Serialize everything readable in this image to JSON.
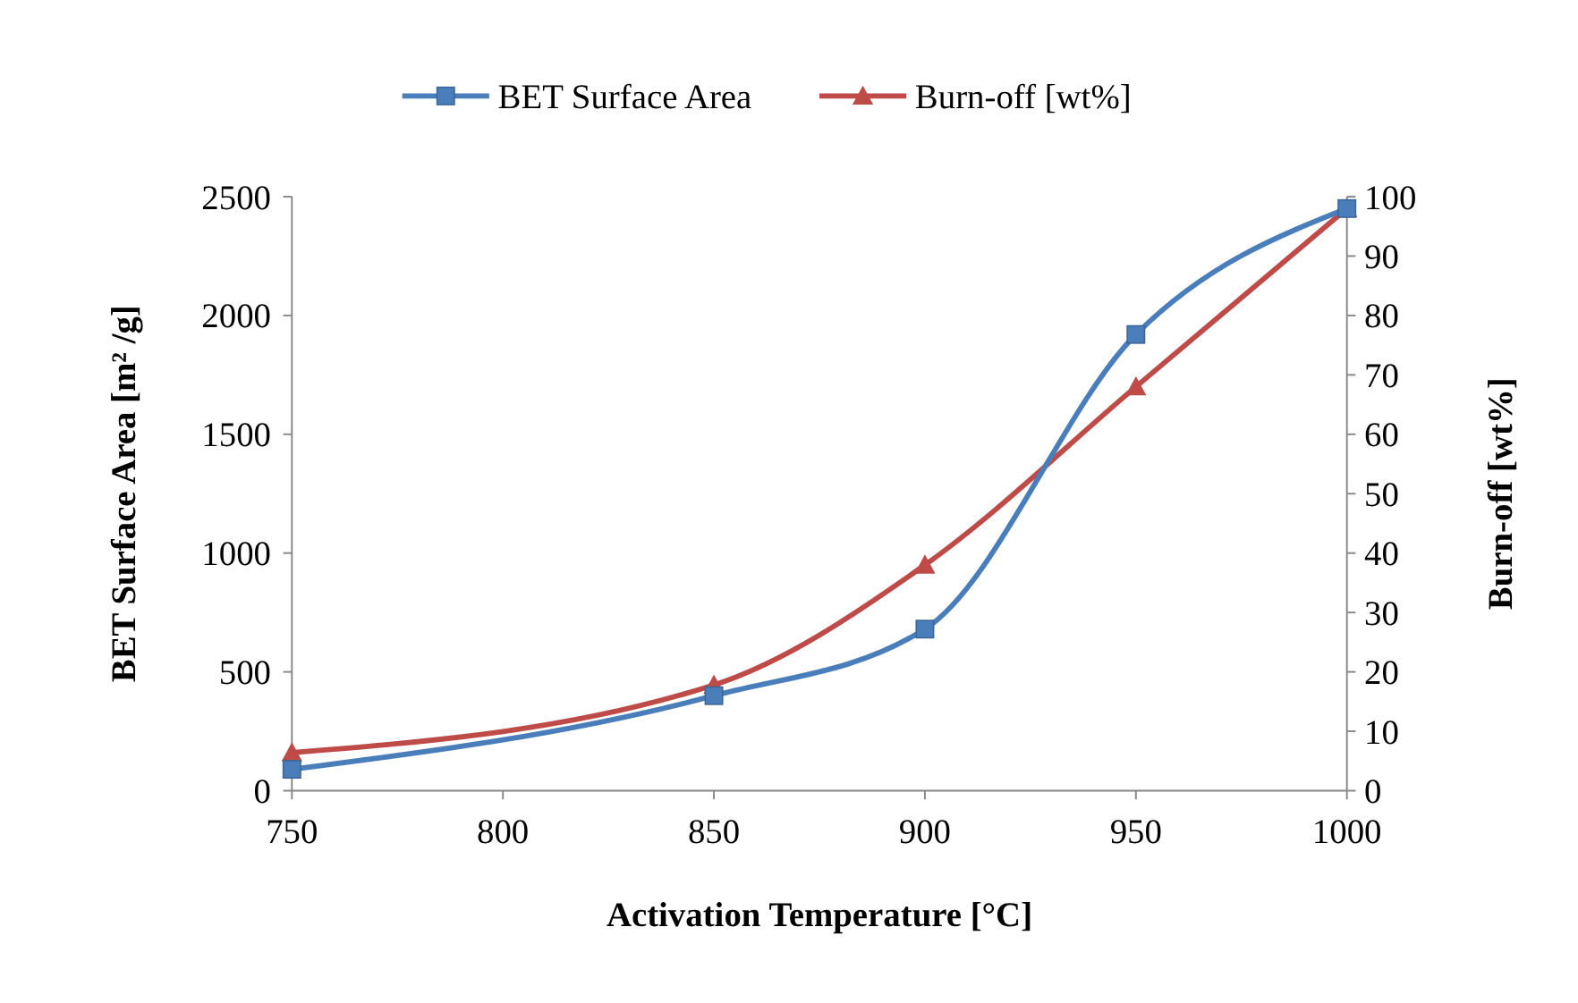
{
  "chart_data": {
    "type": "line",
    "xlabel": "Activation Temperature [°C]",
    "ylabel": "BET Surface Area [m² /g]",
    "y2label": "Burn-off [wt%]",
    "x": [
      750,
      850,
      900,
      950,
      1000
    ],
    "series": [
      {
        "name": "BET Surface Area",
        "color": "#4a7ebb",
        "marker": "square",
        "values": [
          90,
          400,
          680,
          1920,
          2450
        ]
      },
      {
        "name": "Burn-off [wt%]",
        "color": "#be4b48",
        "marker": "triangle",
        "axis": "y2",
        "values": [
          6.4,
          17.8,
          38,
          68,
          98
        ]
      }
    ],
    "xlim": [
      750,
      1000
    ],
    "xticks": [
      750,
      800,
      850,
      900,
      950,
      1000
    ],
    "ylim": [
      0,
      2500
    ],
    "yticks": [
      0,
      500,
      1000,
      1500,
      2000,
      2500
    ],
    "y2lim": [
      0,
      100
    ],
    "y2ticks": [
      0,
      10,
      20,
      30,
      40,
      50,
      60,
      70,
      80,
      90,
      100
    ],
    "grid": false,
    "legend": "top",
    "line_style": "solid"
  }
}
